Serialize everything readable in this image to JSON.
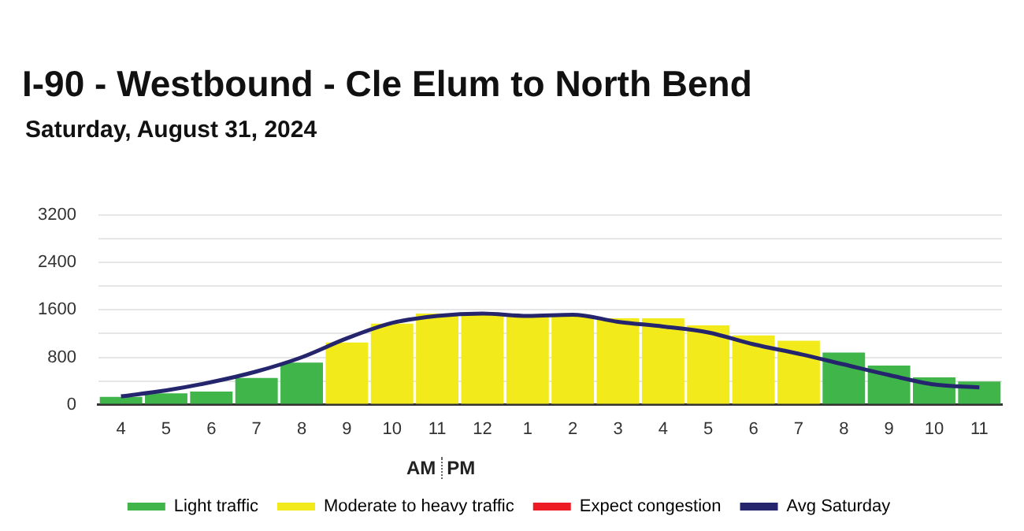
{
  "chart_data": {
    "type": "bar",
    "title": "I-90 - Westbound - Cle Elum to North Bend",
    "subtitle": "Saturday, August 31, 2024",
    "categories": [
      "4",
      "5",
      "6",
      "7",
      "8",
      "9",
      "10",
      "11",
      "12",
      "1",
      "2",
      "3",
      "4",
      "5",
      "6",
      "7",
      "8",
      "9",
      "10",
      "11"
    ],
    "stacked": true,
    "series": [
      {
        "name": "Light traffic",
        "color": "#3fb54a",
        "values": [
          130,
          190,
          220,
          450,
          710,
          null,
          null,
          null,
          null,
          null,
          null,
          null,
          null,
          null,
          null,
          null,
          880,
          660,
          460,
          390
        ]
      },
      {
        "name": "Moderate to heavy traffic",
        "color": "#f2ea1a",
        "values": [
          null,
          null,
          null,
          null,
          null,
          1050,
          1370,
          1540,
          1540,
          1500,
          1500,
          1460,
          1460,
          1340,
          1170,
          1080,
          null,
          null,
          null,
          null
        ]
      },
      {
        "name": "Expect congestion",
        "color": "#ed1c24",
        "values": [
          null,
          null,
          null,
          null,
          null,
          null,
          null,
          null,
          null,
          null,
          null,
          null,
          null,
          null,
          null,
          null,
          null,
          null,
          null,
          null
        ]
      },
      {
        "name": "Avg Saturday",
        "type": "line",
        "color": "#25256e",
        "values": [
          140,
          240,
          380,
          560,
          800,
          1120,
          1380,
          1500,
          1540,
          1500,
          1520,
          1400,
          1320,
          1220,
          1020,
          860,
          680,
          500,
          340,
          290
        ]
      }
    ],
    "ylim": [
      0,
      3200
    ],
    "yticks": [
      0,
      {
        "value": 400,
        "label": null
      },
      800,
      {
        "value": 1200,
        "label": null
      },
      1600,
      {
        "value": 2000,
        "label": null
      },
      2400,
      {
        "value": 2800,
        "label": null
      },
      3200
    ],
    "grid": "y",
    "legend": "bottom",
    "marker": "none",
    "line_style": "solid",
    "annotations": [
      "AM",
      "PM"
    ]
  }
}
